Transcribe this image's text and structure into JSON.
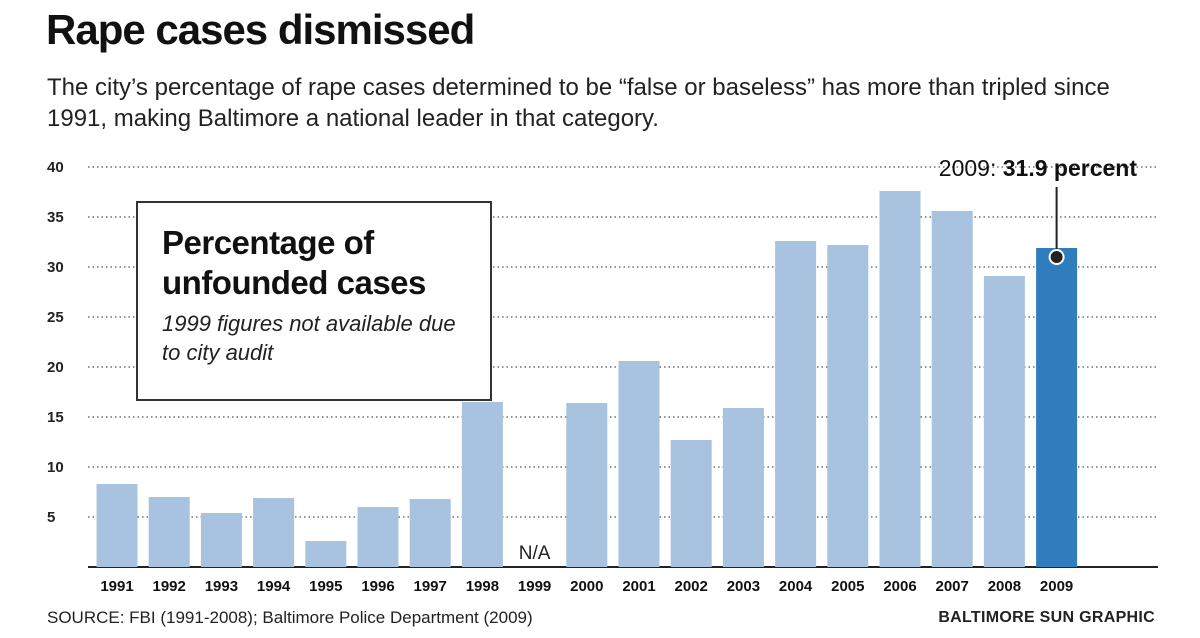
{
  "header": {
    "title": "Rape cases dismissed",
    "subtitle": "The city’s percentage of rape cases determined to be “false or baseless” has more than tripled since 1991, making Baltimore a national leader in that category."
  },
  "infobox": {
    "title": "Percentage of unfounded cases",
    "note": "1999 figures not available due to city audit"
  },
  "chart_data": {
    "type": "bar",
    "categories": [
      "1991",
      "1992",
      "1993",
      "1994",
      "1995",
      "1996",
      "1997",
      "1998",
      "1999",
      "2000",
      "2001",
      "2002",
      "2003",
      "2004",
      "2005",
      "2006",
      "2007",
      "2008",
      "2009"
    ],
    "values": [
      8.3,
      7.0,
      5.4,
      6.9,
      2.6,
      6.0,
      6.8,
      16.5,
      null,
      16.4,
      20.6,
      12.7,
      15.9,
      32.6,
      32.2,
      37.6,
      35.6,
      29.1,
      31.9
    ],
    "ylim": [
      0,
      40
    ],
    "yticks": [
      5,
      10,
      15,
      20,
      25,
      30,
      35,
      40
    ],
    "grid": true,
    "missing_label": "N/A",
    "highlight_category": "2009",
    "colors": {
      "bar": "#a8c3df",
      "highlight": "#2f7dbd",
      "marker": "#222222"
    },
    "annotation": {
      "category": "2009",
      "prefix": "2009: ",
      "value_text": "31.9 percent"
    }
  },
  "footer": {
    "source": "SOURCE: FBI (1991-2008); Baltimore Police Department (2009)",
    "credit": "BALTIMORE SUN GRAPHIC"
  }
}
